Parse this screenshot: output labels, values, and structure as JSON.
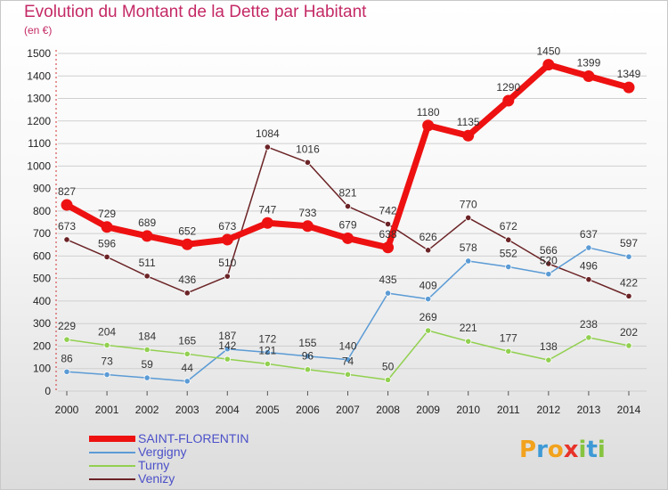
{
  "title": "Evolution du Montant de la Dette par Habitant",
  "unit": "(en €)",
  "logo": {
    "letters": [
      "P",
      "r",
      "o",
      "x",
      "i",
      "t",
      "i"
    ],
    "colors": [
      "#f2a21c",
      "#3e9ad6",
      "#f2a21c",
      "#e8332a",
      "#86c440",
      "#3e9ad6",
      "#86c440"
    ]
  },
  "chart_data": {
    "type": "line",
    "x": [
      "2000",
      "2001",
      "2002",
      "2003",
      "2004",
      "2005",
      "2006",
      "2007",
      "2008",
      "2009",
      "2010",
      "2011",
      "2012",
      "2013",
      "2014"
    ],
    "ylim": [
      0,
      1500
    ],
    "yticks": [
      "0",
      "100",
      "200",
      "300",
      "400",
      "500",
      "600",
      "700",
      "800",
      "900",
      "1000",
      "1100",
      "1200",
      "1300",
      "1400",
      "1500"
    ],
    "grid": "horizontal",
    "legend_position": "bottom-left",
    "series": [
      {
        "name": "SAINT-FLORENTIN",
        "color": "#ee1111",
        "values": [
          827,
          729,
          689,
          652,
          673,
          747,
          733,
          679,
          638,
          1180,
          1135,
          1290,
          1450,
          1399,
          1349
        ]
      },
      {
        "name": "Vergigny",
        "color": "#5b9bd5",
        "values": [
          86,
          73,
          59,
          44,
          187,
          172,
          155,
          140,
          435,
          409,
          578,
          552,
          520,
          637,
          597
        ]
      },
      {
        "name": "Turny",
        "color": "#92d050",
        "values": [
          229,
          204,
          184,
          165,
          142,
          121,
          96,
          74,
          50,
          269,
          221,
          177,
          138,
          238,
          202
        ]
      },
      {
        "name": "Venizy",
        "color": "#6b2326",
        "values": [
          673,
          596,
          511,
          436,
          510,
          1084,
          1016,
          821,
          742,
          626,
          770,
          672,
          566,
          496,
          422
        ]
      }
    ]
  }
}
